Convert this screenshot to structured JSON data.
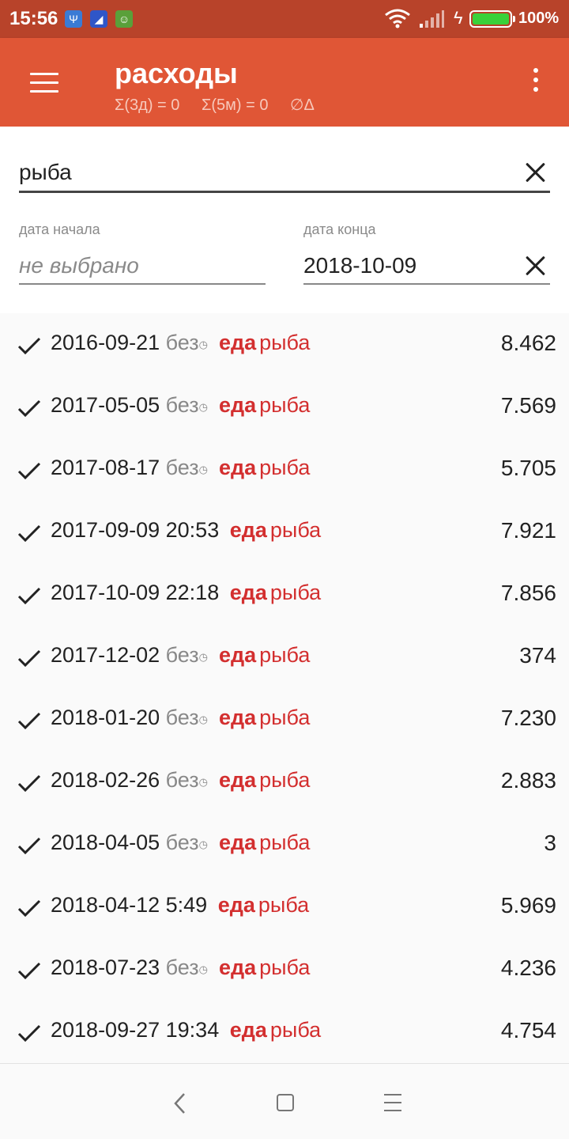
{
  "status_bar": {
    "time": "15:56",
    "battery_percent": "100%",
    "battery_level": 1.0,
    "battery_color": "#39d13a",
    "notification_icons": [
      "usb-icon",
      "shoe-icon",
      "android-icon"
    ]
  },
  "toolbar": {
    "title": "расходы",
    "stat_3d": "Σ(3д) = 0",
    "stat_5m": "Σ(5м) = 0",
    "stat_avg": "∅Δ",
    "menu_icon": "hamburger-icon",
    "overflow_icon": "more-vertical-icon",
    "background_color": "#e05636"
  },
  "filter": {
    "search_value": "рыба",
    "start_label": "дата начала",
    "start_placeholder": "не выбрано",
    "end_label": "дата конца",
    "end_value": "2018-10-09"
  },
  "entries": [
    {
      "date": "2016-09-21",
      "time": "без",
      "category": "еда",
      "subcategory": "рыба",
      "amount": "8.462"
    },
    {
      "date": "2017-05-05",
      "time": "без",
      "category": "еда",
      "subcategory": "рыба",
      "amount": "7.569"
    },
    {
      "date": "2017-08-17",
      "time": "без",
      "category": "еда",
      "subcategory": "рыба",
      "amount": "5.705"
    },
    {
      "date": "2017-09-09",
      "time": "20:53",
      "category": "еда",
      "subcategory": "рыба",
      "amount": "7.921"
    },
    {
      "date": "2017-10-09",
      "time": "22:18",
      "category": "еда",
      "subcategory": "рыба",
      "amount": "7.856"
    },
    {
      "date": "2017-12-02",
      "time": "без",
      "category": "еда",
      "subcategory": "рыба",
      "amount": "374"
    },
    {
      "date": "2018-01-20",
      "time": "без",
      "category": "еда",
      "subcategory": "рыба",
      "amount": "7.230"
    },
    {
      "date": "2018-02-26",
      "time": "без",
      "category": "еда",
      "subcategory": "рыба",
      "amount": "2.883"
    },
    {
      "date": "2018-04-05",
      "time": "без",
      "category": "еда",
      "subcategory": "рыба",
      "amount": "3"
    },
    {
      "date": "2018-04-12",
      "time": "5:49",
      "category": "еда",
      "subcategory": "рыба",
      "amount": "5.969"
    },
    {
      "date": "2018-07-23",
      "time": "без",
      "category": "еда",
      "subcategory": "рыба",
      "amount": "4.236"
    },
    {
      "date": "2018-09-27",
      "time": "19:34",
      "category": "еда",
      "subcategory": "рыба",
      "amount": "4.754"
    }
  ],
  "colors": {
    "accent": "#d32f2f"
  }
}
